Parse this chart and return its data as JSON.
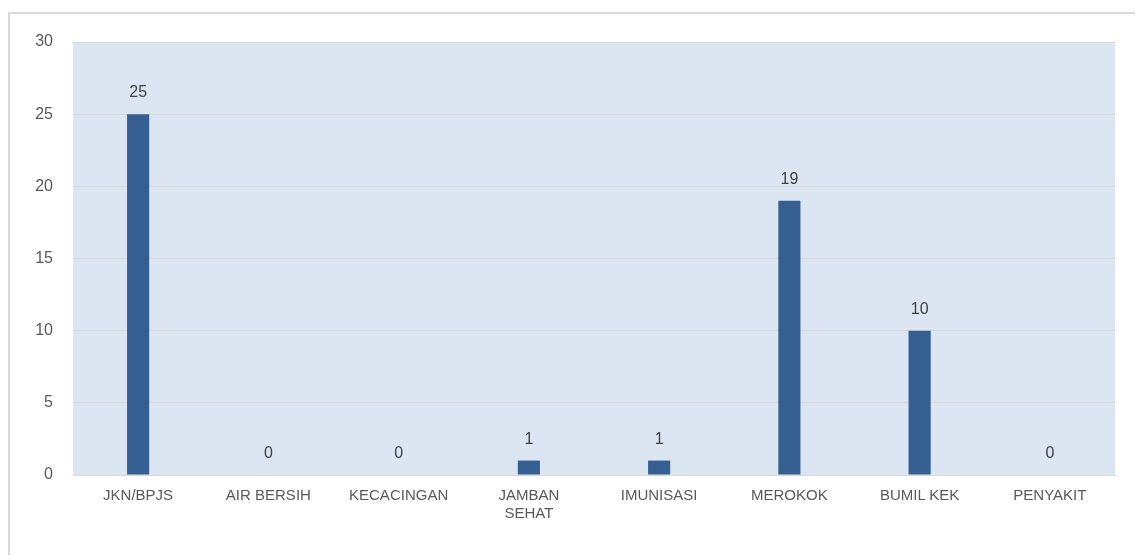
{
  "chart_data": {
    "type": "bar",
    "categories": [
      "JKN/BPJS",
      "AIR BERSIH",
      "KECACINGAN",
      "JAMBAN SEHAT",
      "IMUNISASI",
      "MEROKOK",
      "BUMIL KEK",
      "PENYAKIT"
    ],
    "values": [
      25,
      0,
      0,
      1,
      1,
      19,
      10,
      0
    ],
    "color": "#355f91",
    "ylim": [
      0,
      30
    ],
    "yticks": [
      0,
      5,
      10,
      15,
      20,
      25,
      30
    ],
    "grid": "y",
    "data_labels": true
  }
}
